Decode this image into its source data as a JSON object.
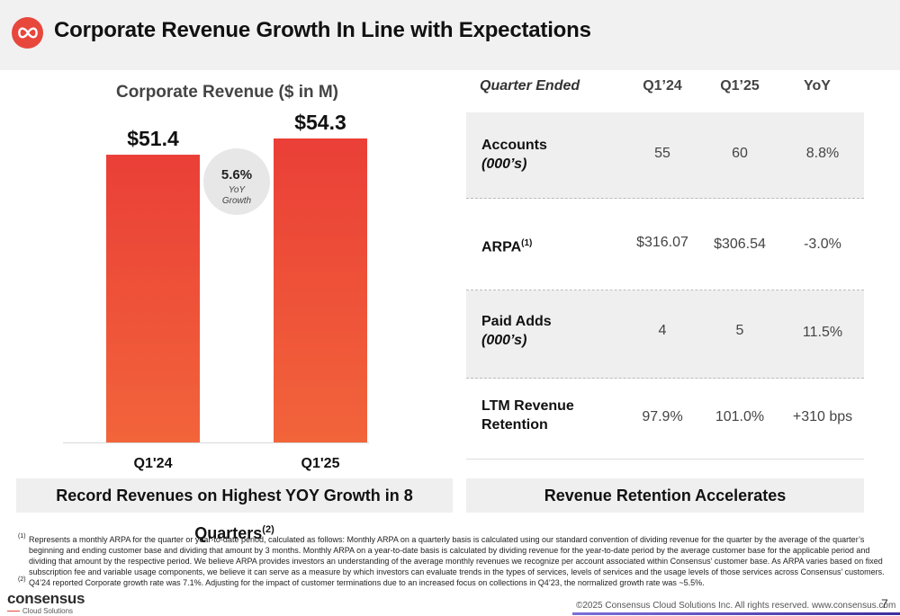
{
  "header": {
    "title": "Corporate Revenue Growth In Line with Expectations"
  },
  "chart_data": {
    "type": "bar",
    "title": "Corporate Revenue ($ in M)",
    "categories": [
      "Q1'24",
      "Q1'25"
    ],
    "values": [
      51.4,
      54.3
    ],
    "value_labels": [
      "$51.4",
      "$54.3"
    ],
    "colors": {
      "top": "#ea3f37",
      "bottom": "#f2643a"
    },
    "growth_bubble": {
      "value": "5.6%",
      "line1": "YoY",
      "line2": "Growth"
    }
  },
  "table": {
    "headers": [
      "Quarter Ended",
      "Q1’24",
      "Q1’25",
      "YoY"
    ],
    "rows": [
      {
        "label": "Accounts",
        "sub": "(000’s)",
        "values": [
          "55",
          "60",
          "8.8%"
        ]
      },
      {
        "label": "ARPA",
        "sup": "(1)",
        "sub": "",
        "values": [
          "$316.07",
          "$306.54",
          "-3.0%"
        ]
      },
      {
        "label": "Paid Adds",
        "sub": "(000’s)",
        "values": [
          "4",
          "5",
          "11.5%"
        ]
      },
      {
        "label": "LTM Revenue",
        "sub": "Retention",
        "values": [
          "97.9%",
          "101.0%",
          "+310 bps"
        ]
      }
    ]
  },
  "callouts": {
    "left": "Record Revenues on Highest YOY Growth in 8 Quarters",
    "left_sup": "(2)",
    "right": "Revenue Retention Accelerates"
  },
  "footnotes": [
    {
      "mark": "(1)",
      "text": "Represents a monthly ARPA for the quarter or year-to-date period, calculated as follows: Monthly ARPA on a quarterly basis is calculated using our standard convention of dividing revenue for the quarter by the average of the quarter’s beginning and ending customer base and dividing that amount by 3 months. Monthly ARPA on a year-to-date basis is calculated by dividing revenue for the year-to-date period by the average customer base for the applicable period and dividing that amount by the respective period. We believe ARPA provides investors an understanding of the average monthly revenues we recognize per account associated within Consensus’ customer base. As ARPA varies based on fixed subscription fee and variable usage components, we believe it can serve as a measure by which investors can evaluate trends in the types of services, levels of services and the usage levels of those services across Consensus’ customers."
    },
    {
      "mark": "(2)",
      "text": "Q4’24 reported Corporate growth rate was 7.1%. Adjusting for the impact of customer terminations due to an increased focus on collections in Q4’23, the normalized growth rate was ~5.5%."
    }
  ],
  "footer": {
    "brand": "consensus",
    "brand_sub": "Cloud Solutions",
    "copyright": "©2025 Consensus Cloud Solutions Inc. All rights reserved. www.consensus.com",
    "page": "7"
  }
}
